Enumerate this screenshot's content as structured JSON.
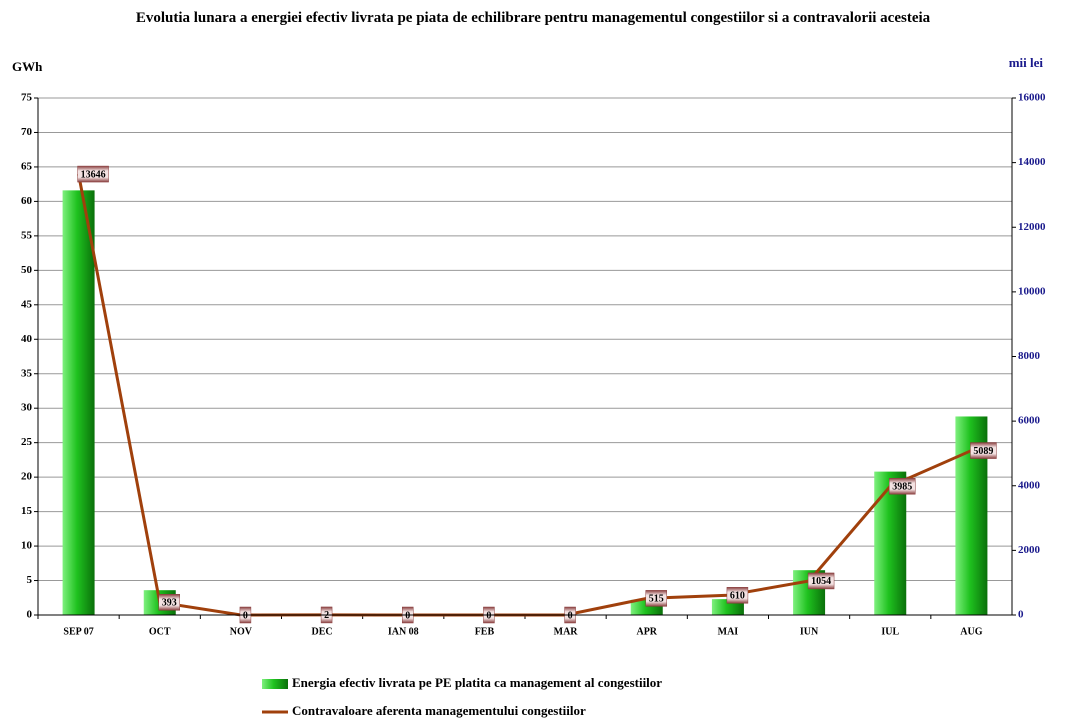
{
  "chart_data": {
    "type": "bar",
    "title": "Evolutia lunara a energiei efectiv livrata pe piata de echilibrare pentru managementul congestiilor si a contravalorii acesteia",
    "y_label": "GWh",
    "y2_label": "mii lei",
    "categories": [
      "SEP 07",
      "OCT",
      "NOV",
      "DEC",
      "IAN 08",
      "FEB",
      "MAR",
      "APR",
      "MAI",
      "IUN",
      "IUL",
      "AUG"
    ],
    "series": [
      {
        "name": "Energia efectiv livrata pe PE platita ca management al congestiilor",
        "type": "bar",
        "color": "#22c422",
        "values": [
          61.6,
          3.6,
          0,
          0,
          0,
          0,
          0,
          2.2,
          2.3,
          6.5,
          20.8,
          28.8
        ]
      },
      {
        "name": "Contravaloare aferenta managementului congestiilor",
        "type": "line",
        "axis": "y2",
        "color": "#a0400c",
        "values": [
          13646,
          393,
          0,
          2,
          0,
          0,
          0,
          515,
          610,
          1054,
          3985,
          5089
        ],
        "data_labels": true
      }
    ],
    "ylim": [
      0,
      75
    ],
    "yticks": [
      0,
      5,
      10,
      15,
      20,
      25,
      30,
      35,
      40,
      45,
      50,
      55,
      60,
      65,
      70,
      75
    ],
    "y2lim": [
      0,
      16000
    ],
    "y2ticks": [
      0,
      2000,
      4000,
      6000,
      8000,
      10000,
      12000,
      14000,
      16000
    ],
    "grid": true,
    "legend": "bottom"
  }
}
